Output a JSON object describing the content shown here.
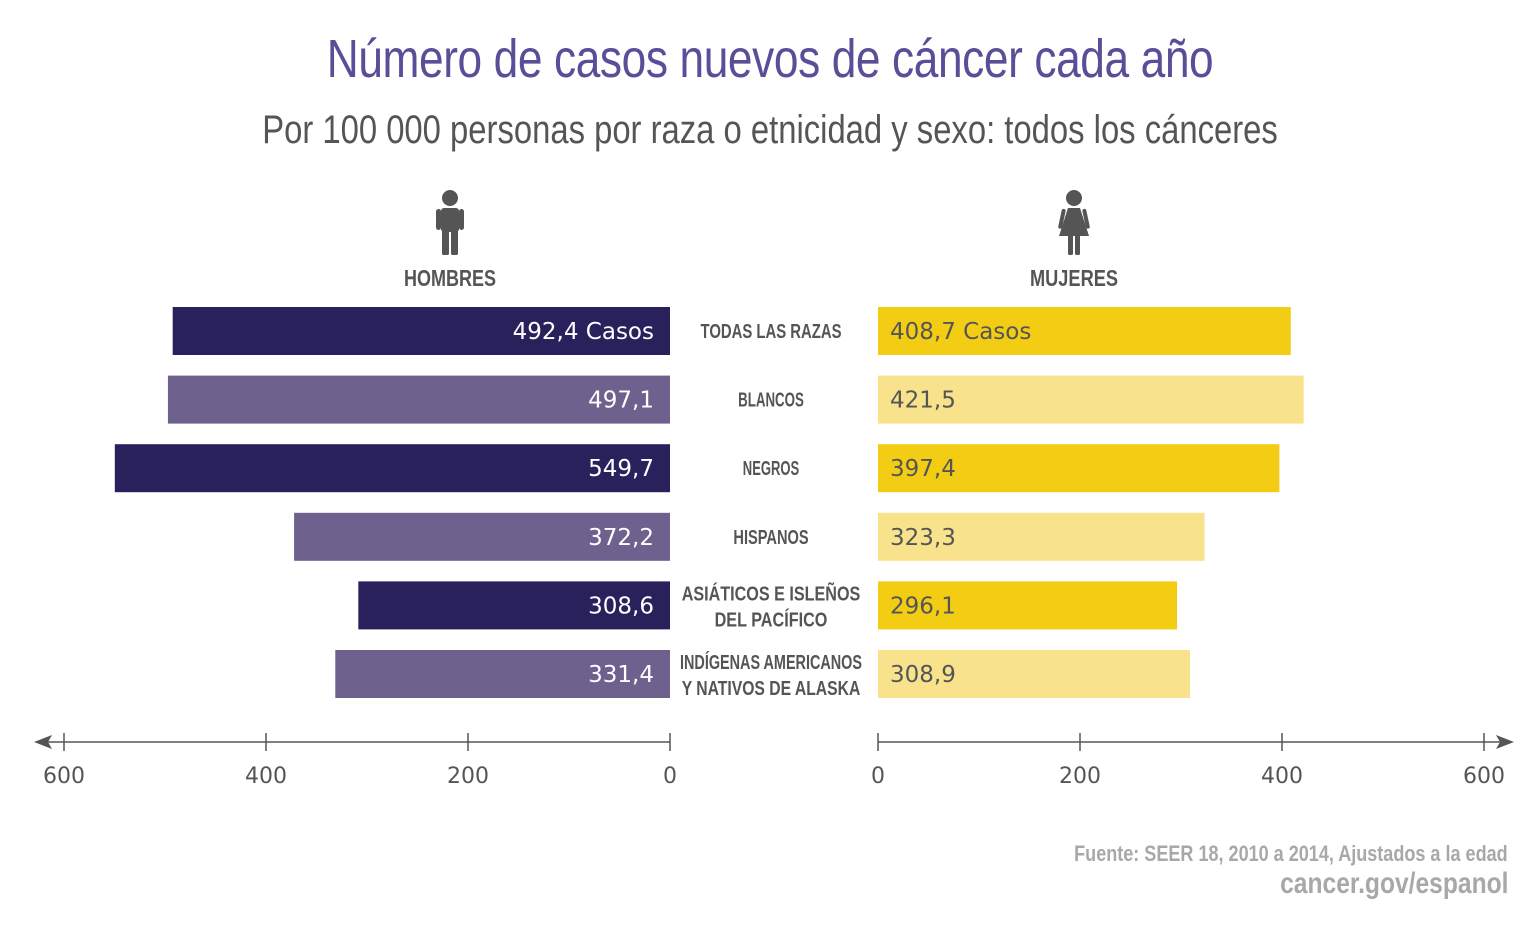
{
  "title": "Número de casos nuevos de cáncer cada año",
  "subtitle": "Por 100 000 personas por raza o etnicidad y sexo: todos los cánceres",
  "left_label": "HOMBRES",
  "right_label": "MUJERES",
  "source_line1": "Fuente:  SEER 18, 2010 a 2014, Ajustados a la edad",
  "source_line2": "cancer.gov/espanol",
  "icons": {
    "left": "man-icon",
    "right": "woman-icon"
  },
  "colors": {
    "men_dark": "#29215c",
    "men_light": "#6e618e",
    "women_dark": "#f3cd14",
    "women_light": "#f8e38c",
    "text_gray": "#555555",
    "title": "#5a4e98"
  },
  "chart_data": {
    "type": "bar",
    "orientation": "horizontal-butterfly",
    "categories": [
      [
        "TODAS LAS RAZAS"
      ],
      [
        "BLANCOS"
      ],
      [
        "NEGROS"
      ],
      [
        "HISPANOS"
      ],
      [
        "ASIÁTICOS E ISLEÑOS",
        "DEL PACÍFICO"
      ],
      [
        "INDÍGENAS AMERICANOS",
        "Y NATIVOS DE ALASKA"
      ]
    ],
    "series": [
      {
        "name": "HOMBRES",
        "values": [
          492.4,
          497.1,
          549.7,
          372.2,
          308.6,
          331.4
        ],
        "labels": [
          "492,4 Casos",
          "497,1",
          "549,7",
          "372,2",
          "308,6",
          "331,4"
        ]
      },
      {
        "name": "MUJERES",
        "values": [
          408.7,
          421.5,
          397.4,
          323.3,
          296.1,
          308.9
        ],
        "labels": [
          "408,7 Casos",
          "421,5",
          "397,4",
          "323,3",
          "296,1",
          "308,9"
        ]
      }
    ],
    "xlim": [
      0,
      600
    ],
    "ticks": [
      0,
      200,
      400,
      600
    ],
    "tick_labels": [
      "0",
      "200",
      "400",
      "600"
    ],
    "grid": false
  }
}
